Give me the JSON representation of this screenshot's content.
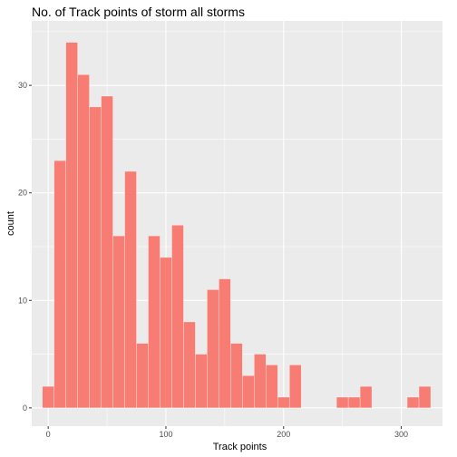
{
  "chart_data": {
    "type": "bar",
    "title": "No. of Track points of storm all storms",
    "xlabel": "Track points",
    "ylabel": "count",
    "bin_width": 10,
    "bin_centers": [
      0,
      10,
      20,
      30,
      40,
      50,
      60,
      70,
      80,
      90,
      100,
      110,
      120,
      130,
      140,
      150,
      160,
      170,
      180,
      190,
      200,
      210,
      220,
      230,
      240,
      250,
      260,
      270,
      280,
      290,
      300,
      310,
      320
    ],
    "values": [
      2,
      23,
      34,
      31,
      28,
      29,
      16,
      22,
      6,
      16,
      14,
      17,
      8,
      5,
      11,
      12,
      6,
      3,
      5,
      4,
      1,
      4,
      0,
      0,
      0,
      1,
      1,
      2,
      0,
      0,
      0,
      1,
      2
    ],
    "xlim": [
      -14,
      335
    ],
    "ylim": [
      -1.7,
      36
    ],
    "x_ticks": [
      0,
      100,
      200,
      300
    ],
    "y_ticks": [
      0,
      10,
      20,
      30
    ],
    "bar_color": "#F8766D",
    "panel_background": "#EBEBEB",
    "grid_major_color": "#FFFFFF",
    "grid": true,
    "legend": false
  }
}
